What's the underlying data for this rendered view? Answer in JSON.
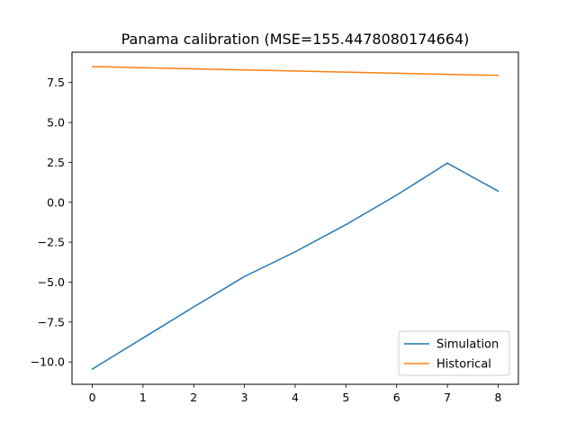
{
  "chart_data": {
    "type": "line",
    "title": "Panama calibration (MSE=155.4478080174664)",
    "xlabel": "",
    "ylabel": "",
    "x": [
      0,
      1,
      2,
      3,
      4,
      5,
      6,
      7,
      8
    ],
    "x_ticks": [
      "0",
      "1",
      "2",
      "3",
      "4",
      "5",
      "6",
      "7",
      "8"
    ],
    "xlim": [
      -0.4,
      8.4
    ],
    "y_ticks": [
      {
        "value": 7.5,
        "label": "7.5"
      },
      {
        "value": 5.0,
        "label": "5.0"
      },
      {
        "value": 2.5,
        "label": "2.5"
      },
      {
        "value": 0.0,
        "label": "0.0"
      },
      {
        "value": -2.5,
        "label": "−2.5"
      },
      {
        "value": -5.0,
        "label": "−5.0"
      },
      {
        "value": -7.5,
        "label": "−7.5"
      },
      {
        "value": -10.0,
        "label": "−10.0"
      }
    ],
    "ylim": [
      -11.4,
      9.4
    ],
    "grid": false,
    "legend_position": "bottom-right",
    "series": [
      {
        "name": "Simulation",
        "color": "#1f77b4",
        "values": [
          -10.45,
          -8.5,
          -6.55,
          -4.65,
          -3.1,
          -1.4,
          0.45,
          2.45,
          0.7
        ]
      },
      {
        "name": "Historical",
        "color": "#ff7f0e",
        "values": [
          8.5,
          8.43,
          8.36,
          8.29,
          8.22,
          8.15,
          8.08,
          8.01,
          7.95
        ]
      }
    ]
  }
}
